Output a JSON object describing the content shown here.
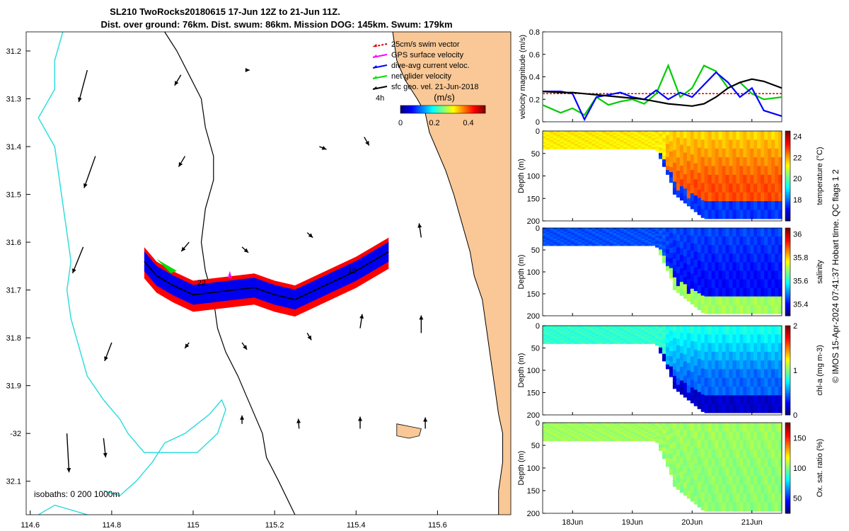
{
  "figure": {
    "title_line1": "SL210 TwoRocks20180615 17-Jun 12Z to 21-Jun 11Z.",
    "title_line2": "Dist. over ground: 76km. Dist. swum: 86km. Mission DOG: 145km. Swum: 179km",
    "side_note": "© IMOS 15-Apr-2024 07:41:37 Hobart time. QC flags 1  2"
  },
  "colors": {
    "ocean": "#ffffff",
    "land": "#f9c896",
    "coast": "#000000",
    "isobath": "#33dddd",
    "swim": "#dd0000",
    "gps": "#ff00ff",
    "current": "#0000ff",
    "net": "#00dd00",
    "geo": "#000000",
    "track_red": "#ff0000",
    "track_blue": "#0000ee"
  },
  "map": {
    "legend": [
      {
        "label": "25cm/s swim vector",
        "color": "#dd0000"
      },
      {
        "label": "GPS surface velocity",
        "color": "#ff00ff"
      },
      {
        "label": "dive-avg current veloc.",
        "color": "#0000ff"
      },
      {
        "label": "net glider velocity",
        "color": "#00dd00"
      },
      {
        "label": "sfc geo. vel. 21-Jun-2018",
        "color": "#000000"
      }
    ],
    "colorbar_unit": "(m/s)",
    "colorbar_ticks": [
      "0",
      "0.2",
      "0.4"
    ],
    "colorbar_range": [
      0,
      0.5
    ],
    "isobaths_label": "isobaths: 0   200  1000m",
    "label_4h": "4h",
    "day_labels": [
      {
        "text": "22",
        "lon": 115.01,
        "lat": -31.69
      },
      {
        "text": "19",
        "lon": 115.38,
        "lat": -31.665
      }
    ],
    "lon_range": [
      114.59,
      115.78
    ],
    "lat_range": [
      -32.17,
      -31.16
    ],
    "lon_ticks": [
      "114.6",
      "114.8",
      "115",
      "115.2",
      "115.4",
      "115.6"
    ],
    "lon_tick_values": [
      114.6,
      114.8,
      115.0,
      115.2,
      115.4,
      115.6
    ],
    "lat_ticks": [
      "31.2",
      "31.3",
      "31.4",
      "31.5",
      "31.6",
      "31.7",
      "31.8",
      "31.9",
      "-32",
      "32.1"
    ],
    "lat_tick_values": [
      -31.2,
      -31.3,
      -31.4,
      -31.5,
      -31.6,
      -31.7,
      -31.8,
      -31.9,
      -32.0,
      -32.1
    ]
  },
  "chart_data": [
    {
      "type": "line",
      "title": "",
      "ylabel": "velocity magnitude (m/s)",
      "ylim": [
        0,
        0.8
      ],
      "yticks": [
        "0",
        "0.2",
        "0.4",
        "0.6",
        "0.8"
      ],
      "x": [
        17.5,
        17.8,
        18.0,
        18.2,
        18.4,
        18.6,
        18.8,
        19.0,
        19.2,
        19.4,
        19.6,
        19.8,
        20.0,
        20.2,
        20.4,
        20.6,
        20.8,
        21.0,
        21.2,
        21.5
      ],
      "series": [
        {
          "name": "swim",
          "color": "#dd0000",
          "values": [
            0.25,
            0.25,
            0.25,
            0.25,
            0.25,
            0.25,
            0.25,
            0.25,
            0.25,
            0.25,
            0.25,
            0.25,
            0.25,
            0.25,
            0.25,
            0.25,
            0.25,
            0.25,
            0.25,
            0.25
          ]
        },
        {
          "name": "net glider velocity",
          "color": "#00cc00",
          "values": [
            0.15,
            0.08,
            0.12,
            0.06,
            0.22,
            0.15,
            0.18,
            0.2,
            0.16,
            0.25,
            0.5,
            0.22,
            0.3,
            0.5,
            0.45,
            0.3,
            0.35,
            0.25,
            0.2,
            0.22
          ]
        },
        {
          "name": "dive-avg current",
          "color": "#0000ff",
          "values": [
            0.27,
            0.27,
            0.25,
            0.02,
            0.22,
            0.24,
            0.26,
            0.22,
            0.2,
            0.28,
            0.2,
            0.26,
            0.22,
            0.33,
            0.44,
            0.35,
            0.22,
            0.3,
            0.1,
            0.05
          ]
        },
        {
          "name": "sfc geo. vel.",
          "color": "#000000",
          "values": [
            0.27,
            0.26,
            0.26,
            0.25,
            0.24,
            0.23,
            0.22,
            0.21,
            0.2,
            0.18,
            0.16,
            0.15,
            0.14,
            0.16,
            0.22,
            0.3,
            0.35,
            0.38,
            0.36,
            0.3
          ]
        }
      ]
    },
    {
      "type": "heatmap",
      "ylabel": "Depth (m)",
      "clabel": "temperature (°C)",
      "ylim": [
        0,
        200
      ],
      "yticks": [
        "0",
        "50",
        "100",
        "150",
        "200"
      ],
      "clim": [
        16,
        24.5
      ],
      "cticks": [
        "24",
        "22",
        "20",
        "18"
      ],
      "surface": 21.5,
      "deep_left": 21.0,
      "deep_right": 22.8,
      "floor": 17.5
    },
    {
      "type": "heatmap",
      "ylabel": "Depth (m)",
      "clabel": "salinity",
      "ylim": [
        0,
        200
      ],
      "yticks": [
        "0",
        "50",
        "100",
        "150",
        "200"
      ],
      "clim": [
        35.3,
        36.05
      ],
      "cticks": [
        "36",
        "35.8",
        "35.6",
        "35.4"
      ],
      "surface": 35.45,
      "deep_left": 35.45,
      "deep_right": 35.4,
      "floor": 35.7
    },
    {
      "type": "heatmap",
      "ylabel": "Depth (m)",
      "clabel": "chl-a (mg m-3)",
      "ylim": [
        0,
        200
      ],
      "yticks": [
        "0",
        "50",
        "100",
        "150",
        "200"
      ],
      "clim": [
        0,
        2
      ],
      "cticks": [
        "2",
        "1",
        "0"
      ],
      "surface": 0.85,
      "deep_left": 0.8,
      "deep_right": 0.45,
      "floor": 0.15
    },
    {
      "type": "heatmap",
      "ylabel": "Depth (m)",
      "clabel": "Ox. sat. ratio (%)",
      "ylim": [
        0,
        200
      ],
      "yticks": [
        "0",
        "50",
        "100",
        "150",
        "200"
      ],
      "clim": [
        25,
        175
      ],
      "cticks": [
        "150",
        "100",
        "50"
      ],
      "surface": 105,
      "deep_left": 104,
      "deep_right": 102,
      "floor": 102
    }
  ],
  "time_axis": {
    "ticks": [
      "18Jun",
      "19Jun",
      "20Jun",
      "21Jun"
    ],
    "tick_values": [
      18,
      19,
      20,
      21
    ],
    "range": [
      17.5,
      21.5
    ]
  }
}
